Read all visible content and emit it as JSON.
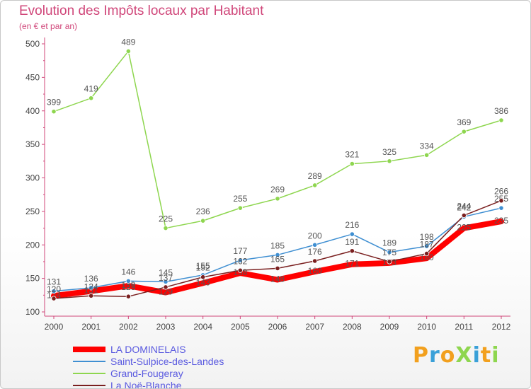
{
  "header": {
    "title": "Evolution des Impôts locaux par Habitant",
    "subtitle": "(en € et par an)"
  },
  "chart_data": {
    "type": "line",
    "title": "Evolution des Impôts locaux par Habitant",
    "subtitle": "(en € et par an)",
    "xlabel": "",
    "ylabel": "",
    "x": [
      "2000",
      "2001",
      "2002",
      "2003",
      "2004",
      "2005",
      "2006",
      "2007",
      "2008",
      "2009",
      "2010",
      "2011",
      "2012"
    ],
    "ylim": [
      100,
      500
    ],
    "yticks": [
      "100",
      "150",
      "200",
      "250",
      "300",
      "350",
      "400",
      "450",
      "500"
    ],
    "series": [
      {
        "name": "LA DOMINELAIS",
        "color": "#ff0000",
        "values": [
          124,
          131,
          139,
          129,
          143,
          158,
          148,
          160,
          171,
          173,
          180,
          225,
          235
        ]
      },
      {
        "name": "Saint-Sulpice-des-Landes",
        "color": "#3f8fd2",
        "values": [
          131,
          136,
          146,
          145,
          155,
          177,
          185,
          200,
          216,
          189,
          198,
          242,
          255
        ]
      },
      {
        "name": "Grand-Fougeray",
        "color": "#8ed64f",
        "values": [
          399,
          419,
          489,
          225,
          236,
          255,
          269,
          289,
          321,
          325,
          334,
          369,
          386
        ]
      },
      {
        "name": "La Noë-Blanche",
        "color": "#7a1f1f",
        "values": [
          120,
          124,
          123,
          137,
          152,
          162,
          165,
          176,
          191,
          175,
          187,
          244,
          266
        ]
      }
    ],
    "grid": false,
    "legend_position": "bottom-left"
  },
  "brand": {
    "text": "ProXiti",
    "colors": [
      "#f2a01e",
      "#3aa0d8",
      "#f2a01e",
      "#8ed64f",
      "#3aa0d8",
      "#f2a01e",
      "#8ed64f"
    ]
  }
}
